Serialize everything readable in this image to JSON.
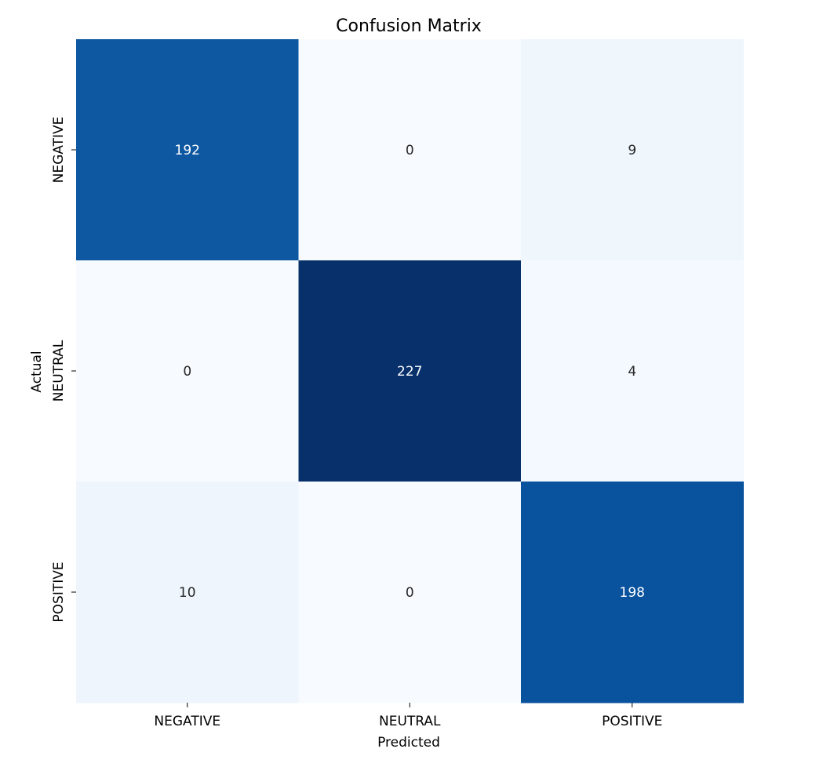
{
  "chart_data": {
    "type": "heatmap",
    "title": "Confusion Matrix",
    "xlabel": "Predicted",
    "ylabel": "Actual",
    "x_categories": [
      "NEGATIVE",
      "NEUTRAL",
      "POSITIVE"
    ],
    "y_categories": [
      "NEGATIVE",
      "NEUTRAL",
      "POSITIVE"
    ],
    "values": [
      [
        192,
        0,
        9
      ],
      [
        0,
        227,
        4
      ],
      [
        10,
        0,
        198
      ]
    ],
    "colormap": "Blues",
    "colorbar": false,
    "value_range": [
      0,
      227
    ],
    "colors": {
      "low": "#f7fbff",
      "high": "#08306b",
      "text_dark": "#262626",
      "text_light": "#ffffff"
    }
  }
}
